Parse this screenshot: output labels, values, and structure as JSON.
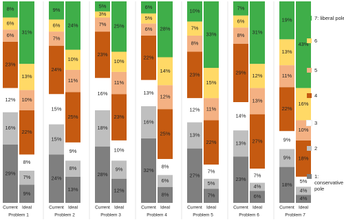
{
  "chart_data": {
    "type": "stacked-bar",
    "groups": [
      "Problem 1",
      "Problem 2",
      "Problem 3",
      "Problem 4",
      "Problem 5",
      "Problem 6",
      "Problem 7"
    ],
    "categories": [
      "Current",
      "Ideal",
      "Current",
      "Ideal",
      "Current",
      "Ideal",
      "Current",
      "Ideal",
      "Current",
      "Ideal",
      "Current",
      "Ideal",
      "Current",
      "Ideal"
    ],
    "series": [
      {
        "name": "1: conservative pole",
        "color": "#7f7f7f",
        "values": [
          29,
          9,
          24,
          13,
          28,
          12,
          32,
          8,
          27,
          7,
          23,
          6,
          18,
          4
        ],
        "value_labels": [
          "29%",
          "9%",
          "24%",
          "13%",
          "28%",
          "12%",
          "32%",
          "8%",
          "27%",
          "7%",
          "23%",
          "6%",
          "18%",
          "4%"
        ]
      },
      {
        "name": "2",
        "color": "#bfbfbf",
        "values": [
          16,
          7,
          15,
          8,
          18,
          9,
          16,
          6,
          13,
          5,
          13,
          4,
          9,
          4
        ],
        "value_labels": [
          "16%",
          "7%",
          "15%",
          "8%",
          "18%",
          "9%",
          "16%",
          "6%",
          "13%",
          "5%",
          "13%",
          "4%",
          "9%",
          "4%"
        ]
      },
      {
        "name": "3",
        "color": "#ffffff",
        "values": [
          12,
          8,
          15,
          9,
          16,
          10,
          13,
          8,
          12,
          7,
          14,
          7,
          9,
          5
        ],
        "value_labels": [
          "12%",
          "8%",
          "15%",
          "9%",
          "16%",
          "10%",
          "13%",
          "8%",
          "12%",
          "7%",
          "14%",
          "7%",
          "9%",
          "5%"
        ]
      },
      {
        "name": "4",
        "color": "#c55a11",
        "values": [
          23,
          22,
          24,
          25,
          23,
          23,
          22,
          25,
          23,
          22,
          29,
          27,
          22,
          18
        ],
        "value_labels": [
          "23%",
          "22%",
          "24%",
          "25%",
          "23%",
          "23%",
          "22%",
          "25%",
          "23%",
          "22%",
          "29%",
          "27%",
          "22%",
          "18%"
        ]
      },
      {
        "name": "5",
        "color": "#f4b183",
        "values": [
          6,
          10,
          7,
          11,
          7,
          11,
          6,
          12,
          8,
          11,
          8,
          13,
          11,
          10
        ],
        "value_labels": [
          "6%",
          "10%",
          "7%",
          "11%",
          "7%",
          "11%",
          "6%",
          "12%",
          "8%",
          "11%",
          "8%",
          "13%",
          "11%",
          "10%"
        ]
      },
      {
        "name": "6",
        "color": "#ffd966",
        "values": [
          6,
          13,
          6,
          10,
          3,
          10,
          5,
          14,
          7,
          15,
          6,
          12,
          13,
          16
        ],
        "value_labels": [
          "6%",
          "13%",
          "6%",
          "10%",
          "3%",
          "10%",
          "5%",
          "14%",
          "7%",
          "15%",
          "6%",
          "12%",
          "13%",
          "16%"
        ]
      },
      {
        "name": "7: liberal pole",
        "color": "#3fae49",
        "values": [
          8,
          31,
          9,
          24,
          5,
          25,
          6,
          28,
          10,
          33,
          7,
          31,
          19,
          43
        ],
        "value_labels": [
          "8%",
          "31%",
          "9%",
          "24%",
          "5%",
          "25%",
          "6%",
          "28%",
          "10%",
          "33%",
          "7%",
          "31%",
          "19%",
          "43%"
        ]
      }
    ]
  }
}
